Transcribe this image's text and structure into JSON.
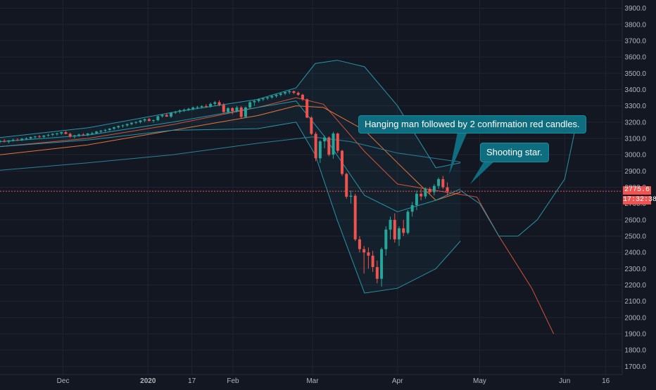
{
  "annotations": {
    "hanging_man": "Hanging man followed by 2 confirmation red candles.",
    "shooting_star": "Shooting star."
  },
  "price_tags": {
    "last_price": "2775.6",
    "countdown": "17:32:38"
  },
  "colors": {
    "background": "#131722",
    "grid": "#1f2433",
    "up": "#26a69a",
    "down": "#ef5350",
    "band": "#2a9bb0",
    "ma_red": "#e0553a",
    "ma_orange": "#f07a3a",
    "ma_slow": "#2a88a0",
    "callout": "#0f6d80"
  },
  "chart_data": {
    "type": "candlestick",
    "y_axis": {
      "range": [
        1650,
        3950
      ],
      "ticks": [
        "3900.0",
        "3800.0",
        "3700.0",
        "3600.0",
        "3500.0",
        "3400.0",
        "3300.0",
        "3200.0",
        "3100.0",
        "3000.0",
        "2900.0",
        "2800.0",
        "2700.0",
        "2600.0",
        "2500.0",
        "2400.0",
        "2300.0",
        "2200.0",
        "2100.0",
        "2000.0",
        "1900.0",
        "1800.0",
        "1700.0"
      ],
      "tick_values": [
        3900,
        3800,
        3700,
        3600,
        3500,
        3400,
        3300,
        3200,
        3100,
        3000,
        2900,
        2800,
        2700,
        2600,
        2500,
        2400,
        2300,
        2200,
        2100,
        2000,
        1900,
        1800,
        1700
      ]
    },
    "x_axis": {
      "range": [
        "2019-11-08",
        "2020-06-22"
      ],
      "ticks": [
        {
          "label": "Dec",
          "date": "2019-12-01",
          "bold": false
        },
        {
          "label": "2020",
          "date": "2020-01-01",
          "bold": true
        },
        {
          "label": "17",
          "date": "2020-01-17",
          "bold": false
        },
        {
          "label": "Feb",
          "date": "2020-02-01",
          "bold": false
        },
        {
          "label": "Mar",
          "date": "2020-03-01",
          "bold": false
        },
        {
          "label": "Apr",
          "date": "2020-04-01",
          "bold": false
        },
        {
          "label": "May",
          "date": "2020-05-01",
          "bold": false
        },
        {
          "label": "Jun",
          "date": "2020-06-01",
          "bold": false
        },
        {
          "label": "16",
          "date": "2020-06-16",
          "bold": false
        }
      ]
    },
    "last_price": 2775.6,
    "candles_start": "2019-11-08",
    "candles": [
      [
        3080,
        3090,
        3070,
        3085
      ],
      [
        3085,
        3095,
        3075,
        3080
      ],
      [
        3080,
        3090,
        3070,
        3088
      ],
      [
        3088,
        3098,
        3080,
        3092
      ],
      [
        3092,
        3100,
        3085,
        3090
      ],
      [
        3090,
        3102,
        3084,
        3098
      ],
      [
        3098,
        3108,
        3090,
        3100
      ],
      [
        3100,
        3112,
        3094,
        3108
      ],
      [
        3108,
        3116,
        3100,
        3112
      ],
      [
        3112,
        3122,
        3104,
        3110
      ],
      [
        3110,
        3120,
        3102,
        3118
      ],
      [
        3118,
        3128,
        3110,
        3122
      ],
      [
        3122,
        3132,
        3114,
        3128
      ],
      [
        3128,
        3136,
        3118,
        3130
      ],
      [
        3130,
        3140,
        3122,
        3138
      ],
      [
        3138,
        3146,
        3125,
        3128
      ],
      [
        3128,
        3135,
        3105,
        3112
      ],
      [
        3112,
        3122,
        3100,
        3118
      ],
      [
        3118,
        3130,
        3110,
        3124
      ],
      [
        3124,
        3132,
        3116,
        3122
      ],
      [
        3122,
        3134,
        3114,
        3130
      ],
      [
        3130,
        3140,
        3122,
        3132
      ],
      [
        3132,
        3146,
        3126,
        3142
      ],
      [
        3142,
        3152,
        3134,
        3148
      ],
      [
        3148,
        3158,
        3140,
        3152
      ],
      [
        3152,
        3164,
        3146,
        3160
      ],
      [
        3160,
        3172,
        3152,
        3168
      ],
      [
        3168,
        3180,
        3160,
        3176
      ],
      [
        3176,
        3186,
        3166,
        3180
      ],
      [
        3180,
        3192,
        3172,
        3188
      ],
      [
        3188,
        3200,
        3180,
        3196
      ],
      [
        3196,
        3206,
        3188,
        3200
      ],
      [
        3200,
        3214,
        3192,
        3210
      ],
      [
        3210,
        3222,
        3200,
        3218
      ],
      [
        3218,
        3226,
        3205,
        3208
      ],
      [
        3208,
        3216,
        3196,
        3212
      ],
      [
        3212,
        3240,
        3206,
        3236
      ],
      [
        3236,
        3250,
        3228,
        3244
      ],
      [
        3244,
        3256,
        3232,
        3234
      ],
      [
        3234,
        3262,
        3226,
        3258
      ],
      [
        3258,
        3270,
        3250,
        3264
      ],
      [
        3264,
        3278,
        3254,
        3272
      ],
      [
        3272,
        3284,
        3262,
        3276
      ],
      [
        3276,
        3288,
        3268,
        3282
      ],
      [
        3282,
        3296,
        3272,
        3290
      ],
      [
        3290,
        3300,
        3280,
        3292
      ],
      [
        3292,
        3304,
        3284,
        3298
      ],
      [
        3298,
        3310,
        3288,
        3296
      ],
      [
        3296,
        3320,
        3288,
        3312
      ],
      [
        3312,
        3330,
        3300,
        3322
      ],
      [
        3322,
        3334,
        3298,
        3306
      ],
      [
        3306,
        3318,
        3255,
        3262
      ],
      [
        3262,
        3292,
        3250,
        3286
      ],
      [
        3286,
        3292,
        3248,
        3268
      ],
      [
        3268,
        3300,
        3260,
        3290
      ],
      [
        3290,
        3298,
        3222,
        3232
      ],
      [
        3232,
        3296,
        3224,
        3290
      ],
      [
        3290,
        3330,
        3282,
        3322
      ],
      [
        3322,
        3338,
        3300,
        3330
      ],
      [
        3330,
        3346,
        3320,
        3340
      ],
      [
        3340,
        3352,
        3330,
        3346
      ],
      [
        3346,
        3358,
        3336,
        3352
      ],
      [
        3352,
        3366,
        3344,
        3360
      ],
      [
        3360,
        3374,
        3350,
        3368
      ],
      [
        3368,
        3382,
        3358,
        3376
      ],
      [
        3376,
        3388,
        3366,
        3384
      ],
      [
        3384,
        3396,
        3372,
        3390
      ],
      [
        3390,
        3393,
        3372,
        3380
      ],
      [
        3380,
        3388,
        3362,
        3368
      ],
      [
        3368,
        3374,
        3330,
        3340
      ],
      [
        3340,
        3346,
        3225,
        3228
      ],
      [
        3228,
        3236,
        3120,
        3128
      ],
      [
        3128,
        3140,
        2960,
        2978
      ],
      [
        2978,
        3090,
        2950,
        3082
      ],
      [
        3082,
        3118,
        3040,
        3106
      ],
      [
        3106,
        3112,
        2990,
        3000
      ],
      [
        3000,
        3140,
        2975,
        3130
      ],
      [
        3130,
        3136,
        3010,
        3024
      ],
      [
        3024,
        3030,
        2870,
        2882
      ],
      [
        2882,
        2890,
        2730,
        2742
      ],
      [
        2742,
        2780,
        2700,
        2748
      ],
      [
        2748,
        2760,
        2470,
        2480
      ],
      [
        2480,
        2500,
        2400,
        2420
      ],
      [
        2420,
        2440,
        2270,
        2400
      ],
      [
        2400,
        2430,
        2300,
        2380
      ],
      [
        2380,
        2410,
        2280,
        2310
      ],
      [
        2310,
        2350,
        2210,
        2238
      ],
      [
        2238,
        2430,
        2190,
        2420
      ],
      [
        2420,
        2560,
        2380,
        2540
      ],
      [
        2540,
        2620,
        2480,
        2600
      ],
      [
        2600,
        2640,
        2460,
        2480
      ],
      [
        2480,
        2560,
        2440,
        2548
      ],
      [
        2548,
        2600,
        2500,
        2520
      ],
      [
        2520,
        2660,
        2510,
        2650
      ],
      [
        2650,
        2710,
        2620,
        2690
      ],
      [
        2690,
        2780,
        2660,
        2760
      ],
      [
        2760,
        2790,
        2720,
        2744
      ],
      [
        2744,
        2800,
        2730,
        2790
      ],
      [
        2790,
        2800,
        2760,
        2770
      ],
      [
        2770,
        2820,
        2750,
        2808
      ],
      [
        2808,
        2860,
        2790,
        2850
      ],
      [
        2850,
        2870,
        2790,
        2800
      ],
      [
        2800,
        2830,
        2750,
        2775
      ]
    ],
    "series": [
      {
        "role": "ma_fast",
        "color": "#e0553a",
        "dates": [
          "2019-11-08",
          "2019-12-10",
          "2020-01-10",
          "2020-02-10",
          "2020-02-24",
          "2020-03-05",
          "2020-03-20",
          "2020-04-01",
          "2020-04-15",
          "2020-04-30",
          "2020-05-08",
          "2020-05-20",
          "2020-05-28"
        ],
        "values": [
          3050,
          3100,
          3185,
          3290,
          3350,
          3310,
          3020,
          2820,
          2780,
          2740,
          2500,
          2180,
          1900
        ]
      },
      {
        "role": "ma_mid",
        "color": "#f07a3a",
        "dates": [
          "2019-11-08",
          "2019-12-10",
          "2020-01-10",
          "2020-02-10",
          "2020-02-24",
          "2020-03-05",
          "2020-03-20",
          "2020-04-01",
          "2020-04-15",
          "2020-04-24"
        ],
        "values": [
          3000,
          3060,
          3150,
          3240,
          3300,
          3290,
          3150,
          2950,
          2720,
          2770
        ]
      },
      {
        "role": "ma_slow",
        "color": "#2a88a0",
        "dates": [
          "2019-11-08",
          "2019-12-10",
          "2020-01-10",
          "2020-02-10",
          "2020-03-01",
          "2020-03-15",
          "2020-04-01",
          "2020-04-24"
        ],
        "values": [
          2905,
          2950,
          3000,
          3070,
          3110,
          3080,
          3010,
          2955
        ]
      },
      {
        "role": "band_upper",
        "color": "#2a9bb0",
        "dates": [
          "2019-11-08",
          "2019-12-10",
          "2020-01-10",
          "2020-02-10",
          "2020-02-24",
          "2020-03-02",
          "2020-03-10",
          "2020-03-20",
          "2020-04-01",
          "2020-04-15",
          "2020-04-24"
        ],
        "values": [
          3105,
          3165,
          3260,
          3340,
          3410,
          3560,
          3580,
          3540,
          3300,
          2920,
          2950
        ]
      },
      {
        "role": "band_lower",
        "color": "#2a9bb0",
        "dates": [
          "2019-11-08",
          "2019-12-10",
          "2020-01-10",
          "2020-02-10",
          "2020-02-24",
          "2020-03-02",
          "2020-03-10",
          "2020-03-20",
          "2020-04-01",
          "2020-04-15",
          "2020-04-24"
        ],
        "values": [
          3050,
          3090,
          3150,
          3160,
          3200,
          3000,
          2600,
          2150,
          2180,
          2300,
          2470
        ]
      },
      {
        "role": "band_basis",
        "color": "#2a9bb0",
        "dates": [
          "2019-11-08",
          "2019-12-10",
          "2020-01-10",
          "2020-02-10",
          "2020-02-24",
          "2020-03-05",
          "2020-03-20",
          "2020-04-01",
          "2020-04-15",
          "2020-04-24"
        ],
        "values": [
          3080,
          3120,
          3200,
          3290,
          3330,
          3120,
          2750,
          2650,
          2720,
          2790
        ]
      },
      {
        "role": "projection",
        "color": "#2a9bb0",
        "dates": [
          "2020-04-24",
          "2020-05-01",
          "2020-05-08",
          "2020-05-15",
          "2020-05-22",
          "2020-06-01",
          "2020-06-05"
        ],
        "values": [
          2780,
          2700,
          2500,
          2500,
          2600,
          2850,
          3170
        ]
      }
    ]
  }
}
